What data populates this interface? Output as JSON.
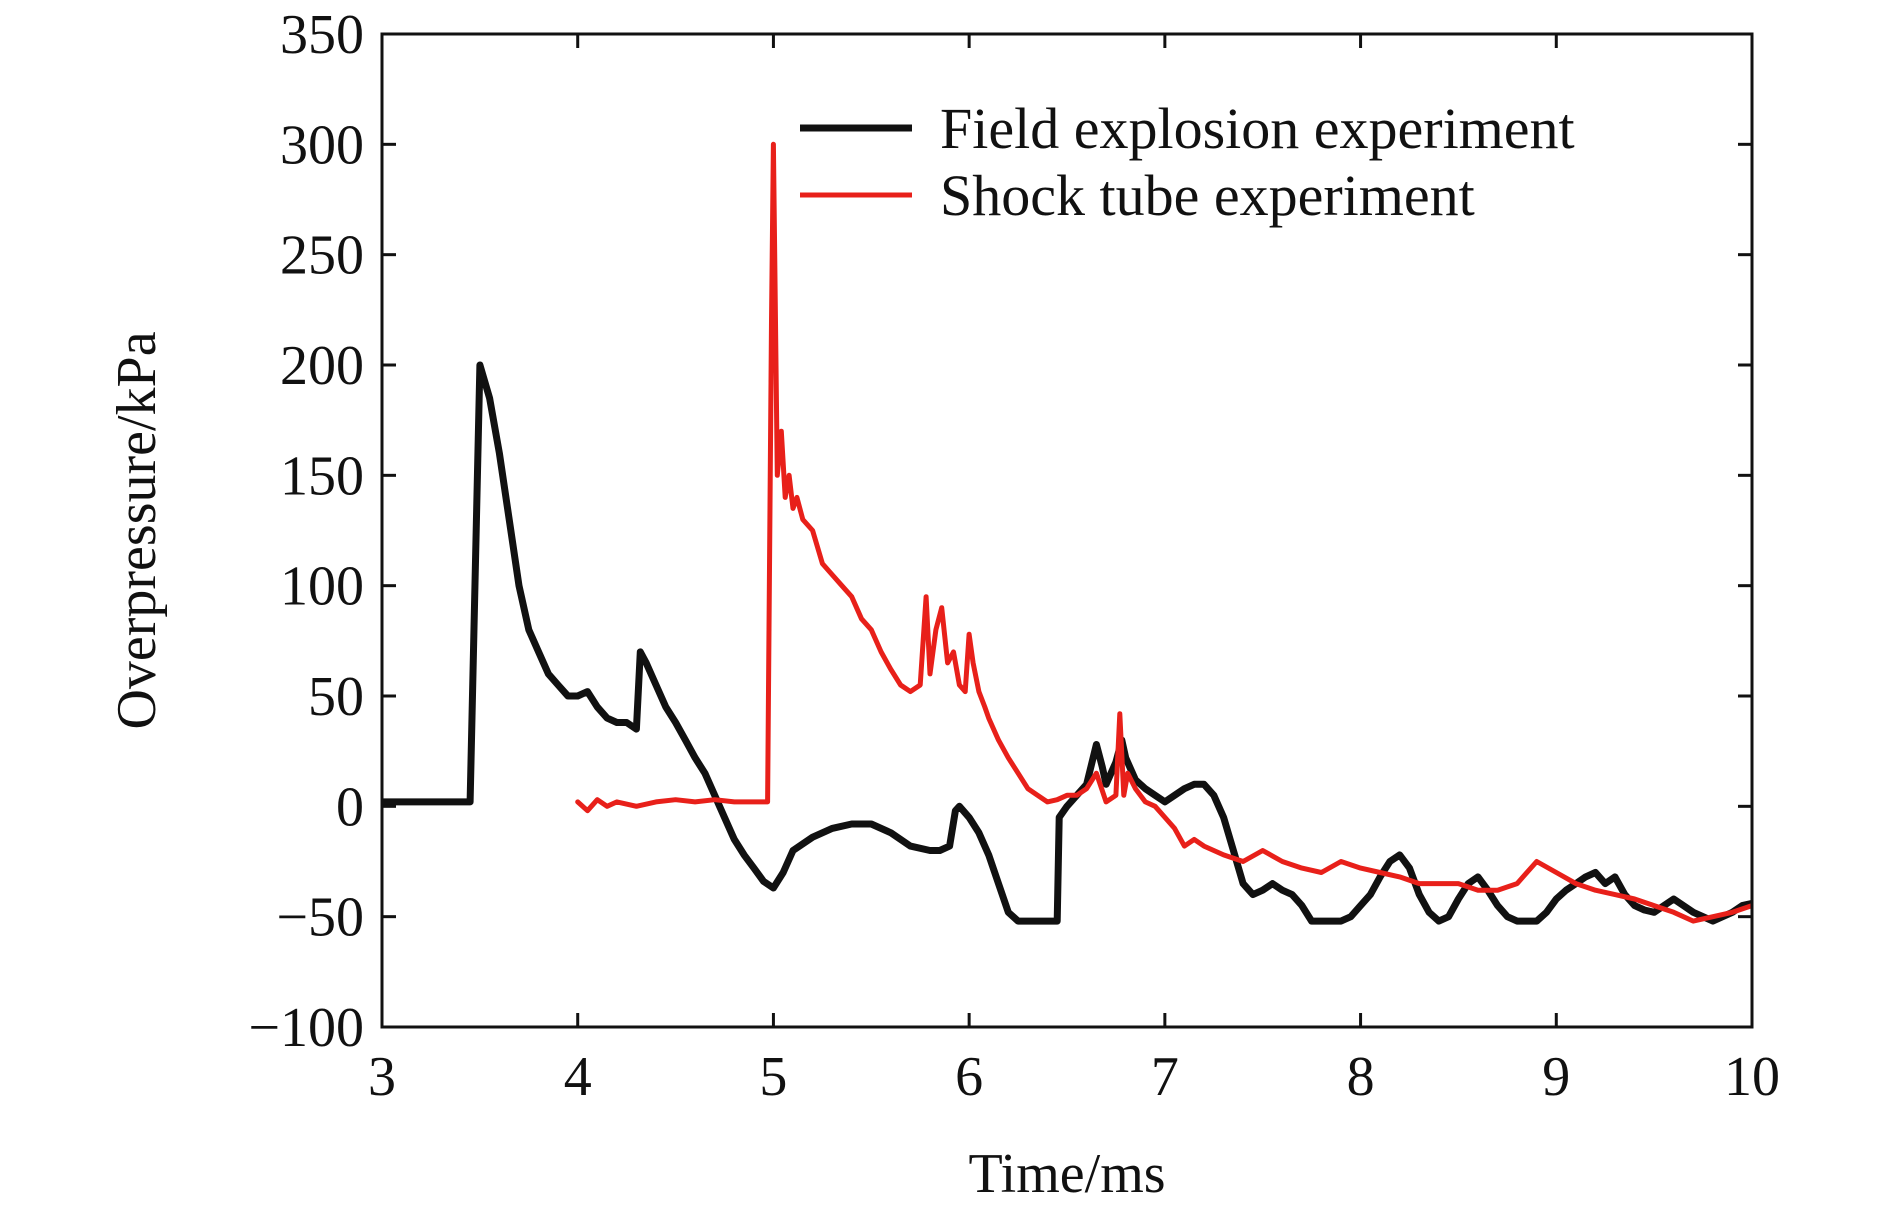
{
  "chart_data": {
    "type": "line",
    "title": "",
    "xlabel": "Time/ms",
    "ylabel": "Overpressure/kPa",
    "xlim": [
      3,
      10
    ],
    "ylim": [
      -100,
      350
    ],
    "xticks": [
      3,
      4,
      5,
      6,
      7,
      8,
      9,
      10
    ],
    "yticks": [
      -100,
      -50,
      0,
      50,
      100,
      150,
      200,
      250,
      300,
      350
    ],
    "xtick_labels": [
      "3",
      "4",
      "5",
      "6",
      "7",
      "8",
      "9",
      "10"
    ],
    "ytick_labels": [
      "−100",
      "−50",
      "0",
      "50",
      "100",
      "150",
      "200",
      "250",
      "300",
      "350"
    ],
    "grid": false,
    "legend_position": "top-right",
    "series": [
      {
        "name": "Field explosion experiment",
        "color": "#111111",
        "x": [
          3.0,
          3.2,
          3.4,
          3.45,
          3.5,
          3.55,
          3.6,
          3.65,
          3.7,
          3.75,
          3.8,
          3.85,
          3.9,
          3.95,
          4.0,
          4.05,
          4.1,
          4.15,
          4.2,
          4.25,
          4.3,
          4.32,
          4.35,
          4.4,
          4.45,
          4.5,
          4.55,
          4.6,
          4.65,
          4.7,
          4.75,
          4.8,
          4.85,
          4.9,
          4.95,
          5.0,
          5.05,
          5.1,
          5.2,
          5.3,
          5.4,
          5.5,
          5.6,
          5.7,
          5.8,
          5.85,
          5.9,
          5.93,
          5.95,
          6.0,
          6.05,
          6.1,
          6.15,
          6.2,
          6.25,
          6.3,
          6.35,
          6.4,
          6.45,
          6.46,
          6.5,
          6.55,
          6.6,
          6.65,
          6.68,
          6.7,
          6.75,
          6.78,
          6.8,
          6.85,
          6.9,
          6.95,
          7.0,
          7.05,
          7.1,
          7.15,
          7.2,
          7.25,
          7.3,
          7.35,
          7.4,
          7.45,
          7.5,
          7.55,
          7.6,
          7.65,
          7.7,
          7.75,
          7.8,
          7.85,
          7.9,
          7.95,
          8.0,
          8.05,
          8.1,
          8.15,
          8.2,
          8.25,
          8.3,
          8.35,
          8.4,
          8.45,
          8.5,
          8.55,
          8.6,
          8.65,
          8.7,
          8.75,
          8.8,
          8.85,
          8.9,
          8.95,
          9.0,
          9.05,
          9.1,
          9.15,
          9.2,
          9.25,
          9.3,
          9.35,
          9.4,
          9.45,
          9.5,
          9.55,
          9.6,
          9.65,
          9.7,
          9.75,
          9.8,
          9.85,
          9.9,
          9.95,
          10.0
        ],
        "y": [
          2,
          2,
          2,
          2,
          200,
          185,
          160,
          130,
          100,
          80,
          70,
          60,
          55,
          50,
          50,
          52,
          45,
          40,
          38,
          38,
          35,
          70,
          65,
          55,
          45,
          38,
          30,
          22,
          15,
          5,
          -5,
          -15,
          -22,
          -28,
          -34,
          -37,
          -30,
          -20,
          -14,
          -10,
          -8,
          -8,
          -12,
          -18,
          -20,
          -20,
          -18,
          -2,
          0,
          -5,
          -12,
          -22,
          -35,
          -48,
          -52,
          -52,
          -52,
          -52,
          -52,
          -5,
          0,
          5,
          10,
          28,
          18,
          10,
          20,
          30,
          22,
          12,
          8,
          5,
          2,
          5,
          8,
          10,
          10,
          5,
          -5,
          -20,
          -35,
          -40,
          -38,
          -35,
          -38,
          -40,
          -45,
          -52,
          -52,
          -52,
          -52,
          -50,
          -45,
          -40,
          -32,
          -25,
          -22,
          -28,
          -40,
          -48,
          -52,
          -50,
          -42,
          -35,
          -32,
          -38,
          -45,
          -50,
          -52,
          -52,
          -52,
          -48,
          -42,
          -38,
          -35,
          -32,
          -30,
          -35,
          -32,
          -40,
          -45,
          -47,
          -48,
          -45,
          -42,
          -45,
          -48,
          -50,
          -52,
          -50,
          -48,
          -45,
          -44
        ],
        "label_bind": "chart_data.series.0.name"
      },
      {
        "name": "Shock tube experiment",
        "color": "#e8201a",
        "x": [
          4.0,
          4.05,
          4.1,
          4.15,
          4.2,
          4.3,
          4.4,
          4.5,
          4.6,
          4.7,
          4.8,
          4.9,
          4.97,
          4.99,
          5.0,
          5.02,
          5.04,
          5.06,
          5.08,
          5.1,
          5.12,
          5.15,
          5.2,
          5.25,
          5.3,
          5.35,
          5.4,
          5.45,
          5.5,
          5.55,
          5.6,
          5.65,
          5.7,
          5.75,
          5.78,
          5.8,
          5.83,
          5.86,
          5.89,
          5.92,
          5.95,
          5.98,
          6.0,
          6.02,
          6.05,
          6.08,
          6.1,
          6.15,
          6.2,
          6.25,
          6.3,
          6.35,
          6.4,
          6.45,
          6.5,
          6.55,
          6.6,
          6.65,
          6.7,
          6.75,
          6.77,
          6.79,
          6.81,
          6.85,
          6.9,
          6.95,
          7.0,
          7.05,
          7.1,
          7.15,
          7.2,
          7.3,
          7.4,
          7.5,
          7.6,
          7.7,
          7.8,
          7.9,
          8.0,
          8.1,
          8.2,
          8.3,
          8.4,
          8.5,
          8.6,
          8.7,
          8.8,
          8.85,
          8.9,
          9.0,
          9.1,
          9.2,
          9.3,
          9.4,
          9.5,
          9.6,
          9.7,
          9.8,
          9.9,
          10.0
        ],
        "y": [
          2,
          -2,
          3,
          0,
          2,
          0,
          2,
          3,
          2,
          3,
          2,
          2,
          2,
          220,
          300,
          150,
          170,
          140,
          150,
          135,
          140,
          130,
          125,
          110,
          105,
          100,
          95,
          85,
          80,
          70,
          62,
          55,
          52,
          55,
          95,
          60,
          80,
          90,
          65,
          70,
          55,
          52,
          78,
          65,
          52,
          45,
          40,
          30,
          22,
          15,
          8,
          5,
          2,
          3,
          5,
          5,
          8,
          15,
          2,
          5,
          42,
          5,
          15,
          8,
          2,
          0,
          -5,
          -10,
          -18,
          -15,
          -18,
          -22,
          -25,
          -20,
          -25,
          -28,
          -30,
          -25,
          -28,
          -30,
          -32,
          -35,
          -35,
          -35,
          -38,
          -38,
          -35,
          -30,
          -25,
          -30,
          -35,
          -38,
          -40,
          -42,
          -45,
          -48,
          -52,
          -50,
          -48,
          -45
        ],
        "label_bind": "chart_data.series.1.name"
      }
    ]
  }
}
